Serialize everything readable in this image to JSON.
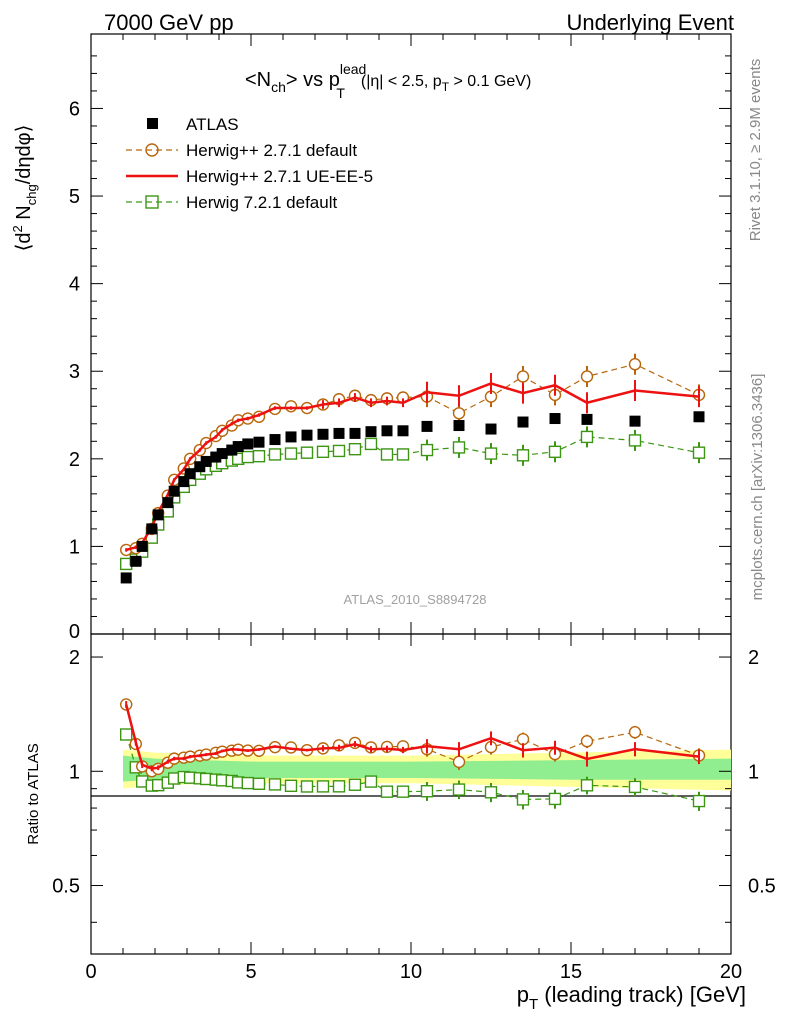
{
  "header": {
    "left": "7000 GeV pp",
    "right": "Underlying Event"
  },
  "plot_title": {
    "main_a": "<N",
    "main_sub": "ch",
    "main_b": "> vs p",
    "main_sup": "lead",
    "main_sub2": "T",
    "cut_a": "(|η| < 2.5, p",
    "cut_sub": "T",
    "cut_b": " > 0.1 GeV)"
  },
  "ylabel_main": {
    "a": "⟨d",
    "sup": "2",
    "b": " N",
    "sub": "chg",
    "c": "/dηdφ⟩"
  },
  "ylabel_ratio": "Ratio to ATLAS",
  "xlabel": {
    "a": "p",
    "sub": "T",
    "b": " (leading track) [GeV]"
  },
  "side_text": {
    "rivet": "Rivet 3.1.10, ≥ 2.9M events",
    "mcplots": "mcplots.cern.ch [arXiv:1306.3436]"
  },
  "analysis_label": "ATLAS_2010_S8894728",
  "legend": [
    {
      "label": "ATLAS",
      "color": "#000000",
      "style": "data"
    },
    {
      "label": "Herwig++ 2.7.1 default",
      "color": "#b8660b",
      "style": "circle-dashed"
    },
    {
      "label": "Herwig++ 2.7.1 UE-EE-5",
      "color": "#ee1111",
      "style": "solid"
    },
    {
      "label": "Herwig 7.2.1 default",
      "color": "#3c9614",
      "style": "square-dashed"
    }
  ],
  "chart_data": {
    "type": "line",
    "xlim": [
      0,
      20
    ],
    "ylim_main": [
      0,
      6.85
    ],
    "ylim_ratio": [
      0.33,
      2.3
    ],
    "x_ticks": [
      "0",
      "5",
      "10",
      "15",
      "20"
    ],
    "y_ticks_main": [
      "1",
      "2",
      "3",
      "4",
      "5",
      "6"
    ],
    "y_ticks_ratio": [
      "0.5",
      "1",
      "2"
    ],
    "x": [
      1.1,
      1.4,
      1.6,
      1.9,
      2.1,
      2.4,
      2.6,
      2.9,
      3.1,
      3.4,
      3.6,
      3.9,
      4.1,
      4.4,
      4.6,
      4.9,
      5.25,
      5.75,
      6.25,
      6.75,
      7.25,
      7.75,
      8.25,
      8.75,
      9.25,
      9.75,
      10.5,
      11.5,
      12.5,
      13.5,
      14.5,
      15.5,
      17.0,
      19.0
    ],
    "series": [
      {
        "name": "ATLAS",
        "values": [
          0.64,
          0.83,
          1.0,
          1.2,
          1.36,
          1.5,
          1.63,
          1.74,
          1.83,
          1.91,
          1.97,
          2.02,
          2.06,
          2.1,
          2.14,
          2.17,
          2.19,
          2.22,
          2.25,
          2.27,
          2.28,
          2.29,
          2.29,
          2.31,
          2.32,
          2.32,
          2.37,
          2.38,
          2.34,
          2.42,
          2.46,
          2.45,
          2.43,
          2.48
        ]
      },
      {
        "name": "Herwig++ 2.7.1 default",
        "values": [
          0.96,
          0.98,
          1.03,
          1.2,
          1.38,
          1.58,
          1.76,
          1.89,
          2.0,
          2.1,
          2.18,
          2.26,
          2.32,
          2.38,
          2.44,
          2.46,
          2.48,
          2.57,
          2.6,
          2.58,
          2.62,
          2.68,
          2.72,
          2.67,
          2.69,
          2.7,
          2.71,
          2.52,
          2.71,
          2.94,
          2.73,
          2.94,
          3.08,
          2.73
        ]
      },
      {
        "name": "Herwig++ 2.7.1 UE-EE-5",
        "values": [
          0.96,
          0.99,
          1.04,
          1.22,
          1.39,
          1.59,
          1.76,
          1.88,
          2.0,
          2.1,
          2.18,
          2.25,
          2.33,
          2.4,
          2.44,
          2.46,
          2.5,
          2.58,
          2.58,
          2.58,
          2.62,
          2.64,
          2.7,
          2.64,
          2.66,
          2.64,
          2.76,
          2.72,
          2.86,
          2.75,
          2.84,
          2.64,
          2.78,
          2.71
        ]
      },
      {
        "name": "Herwig 7.2.1 default",
        "values": [
          0.8,
          0.85,
          0.94,
          1.1,
          1.25,
          1.4,
          1.56,
          1.68,
          1.76,
          1.83,
          1.88,
          1.92,
          1.95,
          1.98,
          2.0,
          2.02,
          2.03,
          2.05,
          2.06,
          2.07,
          2.08,
          2.09,
          2.11,
          2.17,
          2.05,
          2.05,
          2.1,
          2.13,
          2.06,
          2.04,
          2.08,
          2.25,
          2.21,
          2.07
        ]
      }
    ]
  }
}
